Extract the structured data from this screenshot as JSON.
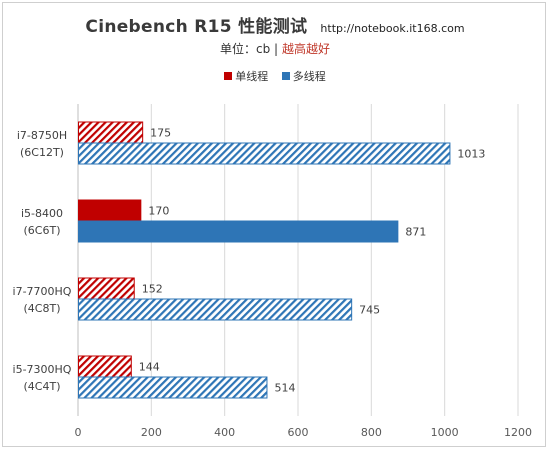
{
  "chart_data": {
    "type": "bar",
    "orientation": "horizontal",
    "title": "Cinebench R15 性能测试",
    "title_url": "http://notebook.it168.com",
    "subtitle_unit": "单位：cb |",
    "subtitle_note": "越高越好",
    "categories": [
      [
        "i7-8750H",
        "(6C12T)"
      ],
      [
        "i5-8400",
        "(6C6T)"
      ],
      [
        "i7-7700HQ",
        "(4C8T)"
      ],
      [
        "i5-7300HQ",
        "(4C4T)"
      ]
    ],
    "series": [
      {
        "name": "单线程",
        "color": "#c00000",
        "values": [
          175,
          170,
          152,
          144
        ],
        "hatched": [
          true,
          false,
          true,
          true
        ]
      },
      {
        "name": "多线程",
        "color": "#2e75b6",
        "values": [
          1013,
          871,
          745,
          514
        ],
        "hatched": [
          true,
          false,
          true,
          true
        ]
      }
    ],
    "xlim": [
      0,
      1200
    ],
    "xticks": [
      0,
      200,
      400,
      600,
      800,
      1000,
      1200
    ],
    "grid": true,
    "legend_position": "top"
  }
}
